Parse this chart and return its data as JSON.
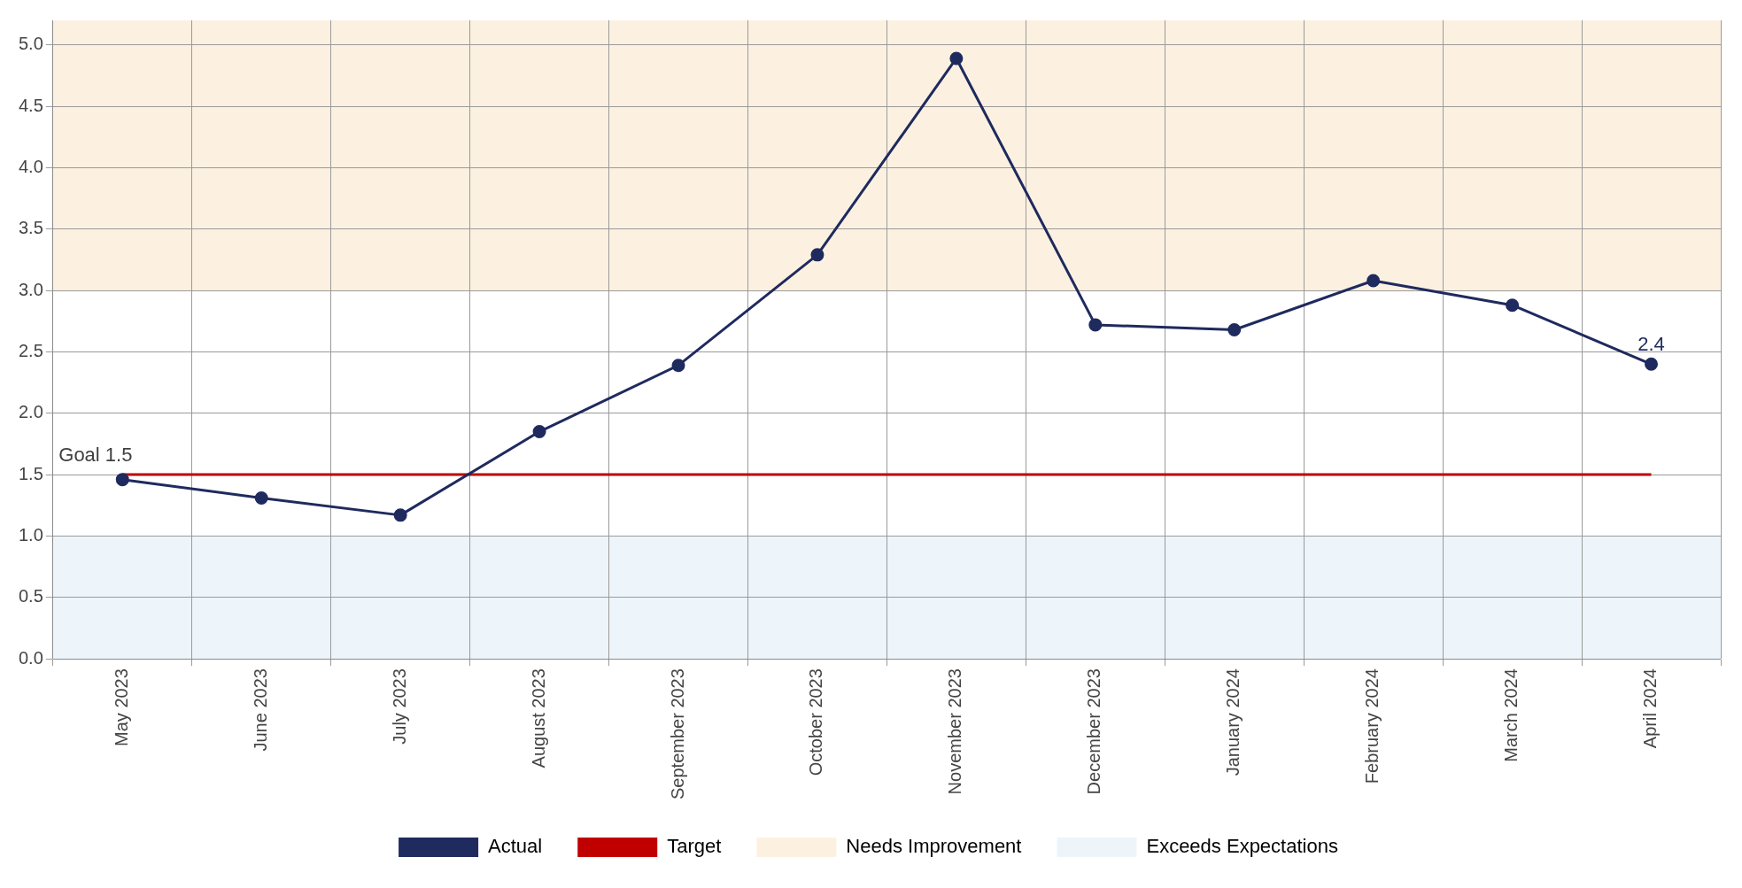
{
  "chart_data": {
    "type": "line",
    "categories": [
      "May 2023",
      "June 2023",
      "July 2023",
      "August 2023",
      "September 2023",
      "October 2023",
      "November 2023",
      "December 2023",
      "January 2024",
      "February 2024",
      "March 2024",
      "April 2024"
    ],
    "series": [
      {
        "name": "Actual",
        "color": "#1f2a5e",
        "values": [
          1.46,
          1.31,
          1.17,
          1.85,
          2.39,
          3.29,
          4.89,
          2.72,
          2.68,
          3.08,
          2.88,
          2.4
        ],
        "value_labels": [
          null,
          null,
          null,
          null,
          null,
          null,
          null,
          null,
          null,
          null,
          null,
          "2.4"
        ]
      },
      {
        "name": "Target",
        "color": "#c00000",
        "marker": "none",
        "values": [
          1.5,
          1.5,
          1.5,
          1.5,
          1.5,
          1.5,
          1.5,
          1.5,
          1.5,
          1.5,
          1.5,
          1.5
        ]
      }
    ],
    "bands": [
      {
        "axis": "y",
        "from": 3,
        "to": 5.2,
        "label": "Needs Improvement",
        "color": "#fcf1e1"
      },
      {
        "axis": "y",
        "from": 0,
        "to": 1,
        "label": "Exceeds Expectations",
        "color": "#edf5fb"
      }
    ],
    "annotations": [
      {
        "text": "Goal 1.5",
        "x": "May 2023",
        "y": 1.5
      }
    ],
    "ylim": [
      0,
      5.2
    ],
    "yticks": [
      {
        "value": 0,
        "label": "0.0"
      },
      0.5,
      {
        "value": 1,
        "label": "1.0"
      },
      1.5,
      {
        "value": 2,
        "label": "2.0"
      },
      2.5,
      {
        "value": 3,
        "label": "3.0"
      },
      3.5,
      {
        "value": 4,
        "label": "4.0"
      },
      4.5,
      {
        "value": 5,
        "label": "5.0"
      }
    ],
    "grid": true,
    "legend": "bottom",
    "marker": "circle",
    "line_style": "solid"
  }
}
